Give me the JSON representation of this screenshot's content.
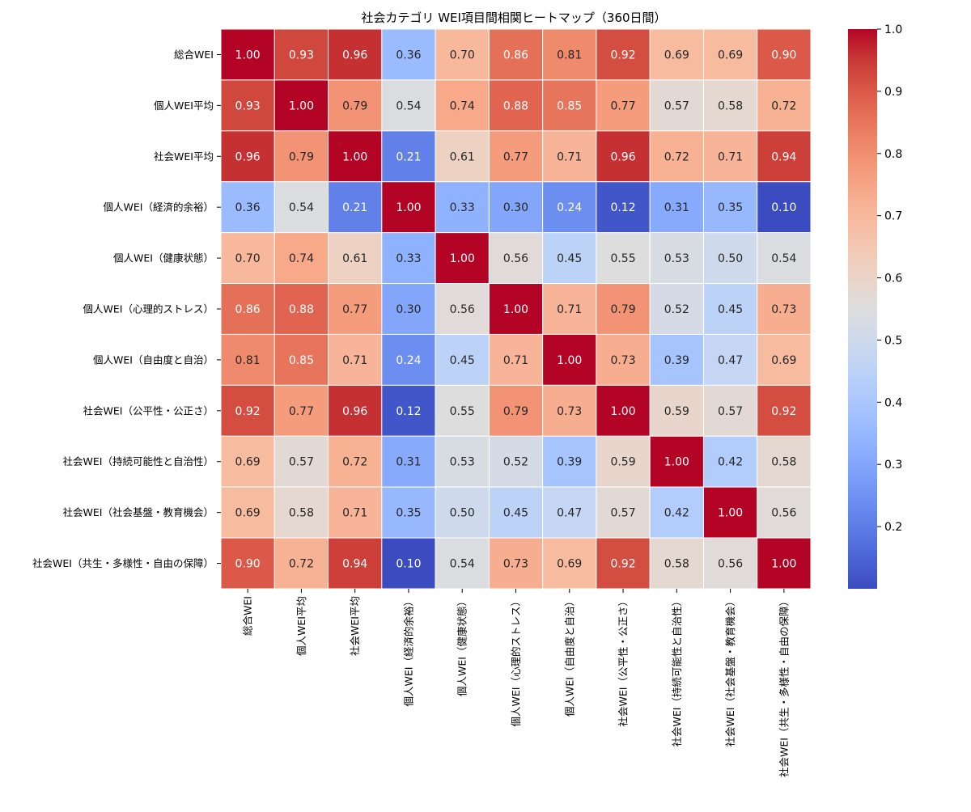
{
  "chart_data": {
    "type": "heatmap",
    "title": "社会カテゴリ WEI項目間相関ヒートマップ（360日間）",
    "xlabel": "",
    "ylabel": "",
    "row_labels": [
      "総合WEI",
      "個人WEI平均",
      "社会WEI平均",
      "個人WEI（経済的余裕）",
      "個人WEI（健康状態）",
      "個人WEI（心理的ストレス）",
      "個人WEI（自由度と自治）",
      "社会WEI（公平性・公正さ）",
      "社会WEI（持続可能性と自治性）",
      "社会WEI（社会基盤・教育機会）",
      "社会WEI（共生・多様性・自由の保障）"
    ],
    "column_labels": [
      "総合WEI",
      "個人WEI平均",
      "社会WEI平均",
      "個人WEI（経済的余裕）",
      "個人WEI（健康状態）",
      "個人WEI（心理的ストレス）",
      "個人WEI（自由度と自治）",
      "社会WEI（公平性・公正さ）",
      "社会WEI（持続可能性と自治性）",
      "社会WEI（社会基盤・教育機会）",
      "社会WEI（共生・多様性・自由の保障）"
    ],
    "values": [
      [
        1.0,
        0.93,
        0.96,
        0.36,
        0.7,
        0.86,
        0.81,
        0.92,
        0.69,
        0.69,
        0.9
      ],
      [
        0.93,
        1.0,
        0.79,
        0.54,
        0.74,
        0.88,
        0.85,
        0.77,
        0.57,
        0.58,
        0.72
      ],
      [
        0.96,
        0.79,
        1.0,
        0.21,
        0.61,
        0.77,
        0.71,
        0.96,
        0.72,
        0.71,
        0.94
      ],
      [
        0.36,
        0.54,
        0.21,
        1.0,
        0.33,
        0.3,
        0.24,
        0.12,
        0.31,
        0.35,
        0.1
      ],
      [
        0.7,
        0.74,
        0.61,
        0.33,
        1.0,
        0.56,
        0.45,
        0.55,
        0.53,
        0.5,
        0.54
      ],
      [
        0.86,
        0.88,
        0.77,
        0.3,
        0.56,
        1.0,
        0.71,
        0.79,
        0.52,
        0.45,
        0.73
      ],
      [
        0.81,
        0.85,
        0.71,
        0.24,
        0.45,
        0.71,
        1.0,
        0.73,
        0.39,
        0.47,
        0.69
      ],
      [
        0.92,
        0.77,
        0.96,
        0.12,
        0.55,
        0.79,
        0.73,
        1.0,
        0.59,
        0.57,
        0.92
      ],
      [
        0.69,
        0.57,
        0.72,
        0.31,
        0.53,
        0.52,
        0.39,
        0.59,
        1.0,
        0.42,
        0.58
      ],
      [
        0.69,
        0.58,
        0.71,
        0.35,
        0.5,
        0.45,
        0.47,
        0.57,
        0.42,
        1.0,
        0.56
      ],
      [
        0.9,
        0.72,
        0.94,
        0.1,
        0.54,
        0.73,
        0.69,
        0.92,
        0.58,
        0.56,
        1.0
      ]
    ],
    "annotation_format": "2 decimals",
    "colormap": "coolwarm",
    "colormap_stops": [
      "#3b4cc0",
      "#dddddd",
      "#b40426"
    ],
    "value_range": [
      0.1,
      1.0
    ],
    "colorbar": {
      "position": "right",
      "ticks": [
        0.2,
        0.3,
        0.4,
        0.5,
        0.6,
        0.7,
        0.8,
        0.9,
        1.0
      ],
      "tick_labels": [
        "0.2",
        "0.3",
        "0.4",
        "0.5",
        "0.6",
        "0.7",
        "0.8",
        "0.9",
        "1.0"
      ]
    },
    "cell_gridlines": "white",
    "x_tick_rotation": "vertical"
  }
}
